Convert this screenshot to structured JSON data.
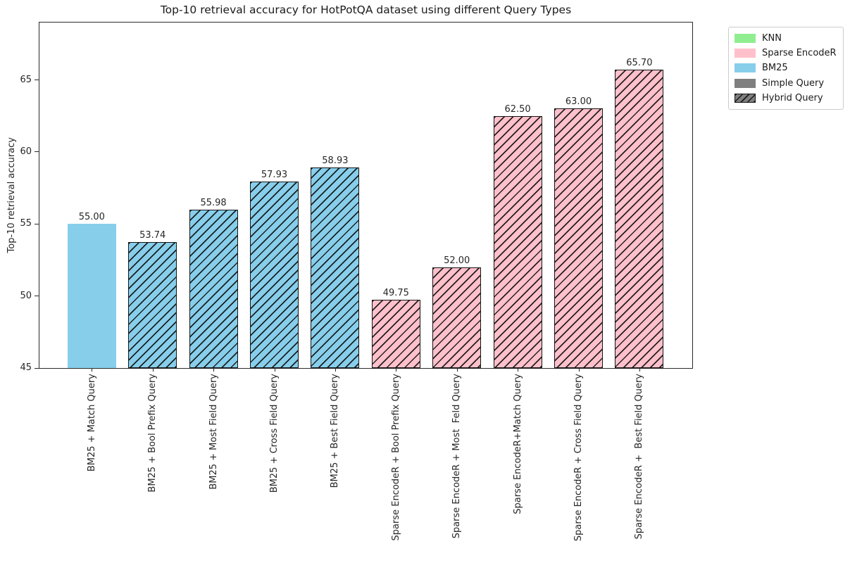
{
  "chart_data": {
    "type": "bar",
    "title": "Top-10 retrieval accuracy for HotPotQA dataset using different Query Types",
    "ylabel": "Top-10 retrieval accuracy",
    "ylim": [
      45,
      69
    ],
    "yticks": [
      45,
      50,
      55,
      60,
      65
    ],
    "grid": false,
    "bar_value_decimals": 2,
    "categories": [
      "BM25 + Match Query",
      "BM25 + Bool Prefix Query",
      "BM25 + Most Field Query",
      "BM25 + Cross Field Query",
      "BM25 + Best Field Query",
      "Sparse EncodeR + Bool Prefix Query",
      "Sparse EncodeR + Most  Feld Query",
      "Sparse EncodeR+Match Query",
      "Sparse EncodeR + Cross Field Query",
      "Sparse EncodeR +  Best Field Query"
    ],
    "values": [
      55.0,
      53.74,
      55.98,
      57.93,
      58.93,
      49.75,
      52.0,
      62.5,
      63.0,
      65.7
    ],
    "bar_styles": [
      {
        "color": "#87CEEB",
        "hatched": false
      },
      {
        "color": "#87CEEB",
        "hatched": true
      },
      {
        "color": "#87CEEB",
        "hatched": true
      },
      {
        "color": "#87CEEB",
        "hatched": true
      },
      {
        "color": "#87CEEB",
        "hatched": true
      },
      {
        "color": "#FFC0CB",
        "hatched": true
      },
      {
        "color": "#FFC0CB",
        "hatched": true
      },
      {
        "color": "#FFC0CB",
        "hatched": true
      },
      {
        "color": "#FFC0CB",
        "hatched": true
      },
      {
        "color": "#FFC0CB",
        "hatched": true
      }
    ],
    "legend": {
      "position": "outside-upper-right",
      "items": [
        {
          "label": "KNN",
          "color": "#90EE90",
          "hatched": false
        },
        {
          "label": "Sparse EncodeR",
          "color": "#FFC0CB",
          "hatched": false
        },
        {
          "label": "BM25",
          "color": "#87CEEB",
          "hatched": false
        },
        {
          "label": "Simple Query",
          "color": "#7f7f7f",
          "hatched": false
        },
        {
          "label": "Hybrid Query",
          "color": "#7f7f7f",
          "hatched": true
        }
      ]
    }
  }
}
